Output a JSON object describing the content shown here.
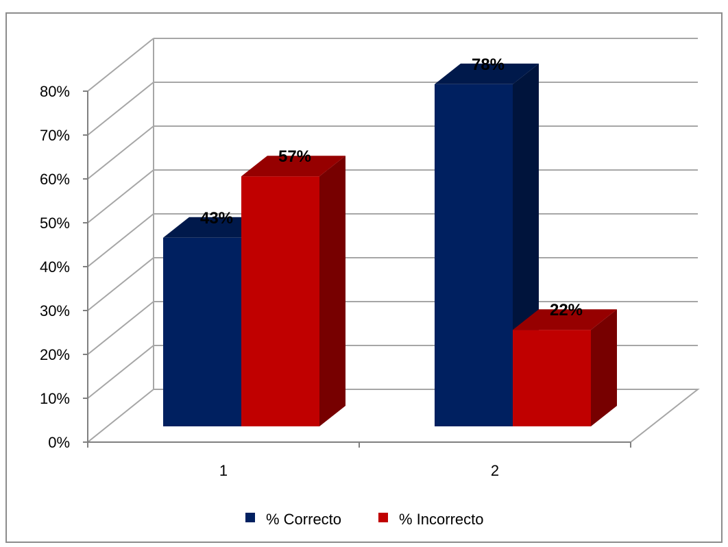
{
  "chart_data": {
    "type": "bar",
    "categories": [
      "1",
      "2"
    ],
    "series": [
      {
        "name": "% Correcto",
        "values": [
          43,
          78
        ],
        "color": "#002060",
        "labels": [
          "43%",
          "78%"
        ]
      },
      {
        "name": "% Incorrecto",
        "values": [
          57,
          22
        ],
        "color": "#C00000",
        "labels": [
          "57%",
          "22%"
        ]
      }
    ],
    "ylim": [
      0,
      80
    ],
    "y_ticks": [
      "0%",
      "10%",
      "20%",
      "30%",
      "40%",
      "50%",
      "60%",
      "70%",
      "80%"
    ],
    "y_tick_values": [
      0,
      10,
      20,
      30,
      40,
      50,
      60,
      70,
      80
    ],
    "grid": true,
    "legend_position": "bottom",
    "style": "3d-clustered-column"
  }
}
